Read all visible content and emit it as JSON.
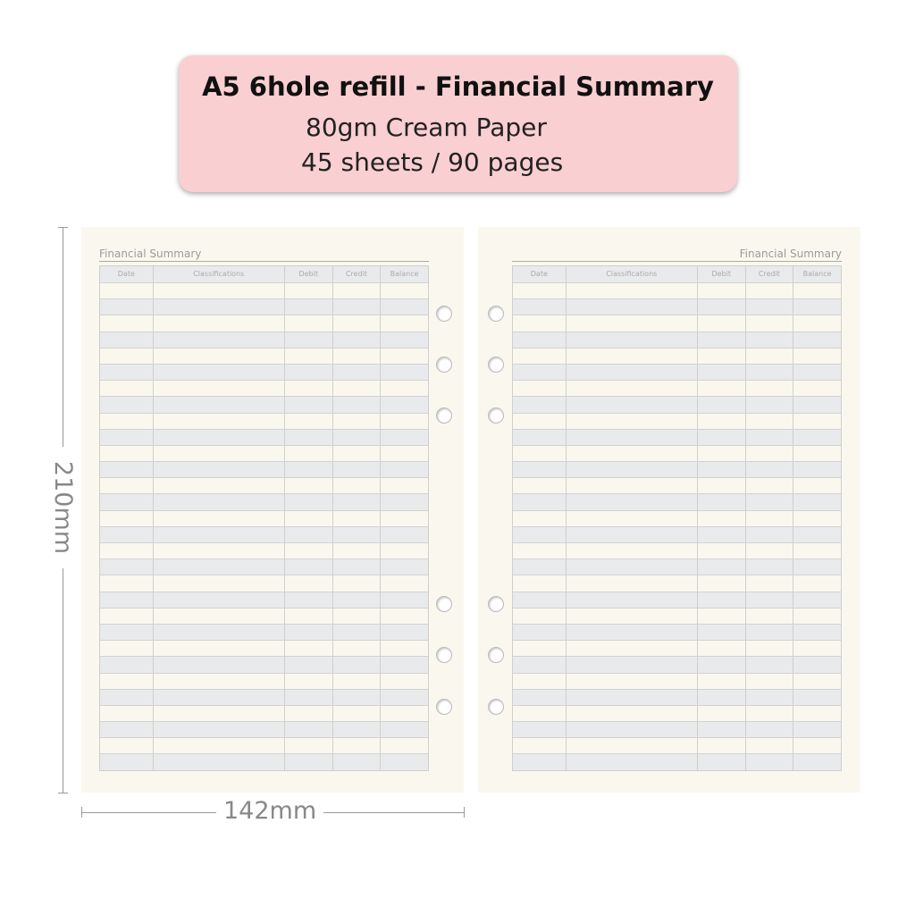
{
  "banner": {
    "title": "A5 6hole refill - Financial Summary",
    "paper": "80gm Cream Paper",
    "count": "45 sheets / 90 pages",
    "color": "#f9cfd1"
  },
  "pages": {
    "title": "Financial Summary",
    "columns": [
      "Date",
      "Classifications",
      "Debit",
      "Credit",
      "Balance"
    ],
    "row_count": 30,
    "row_colors": [
      "#faf8ee",
      "#e9eaec"
    ],
    "hole_count": 6
  },
  "dimensions": {
    "height": "210mm",
    "width": "142mm"
  }
}
